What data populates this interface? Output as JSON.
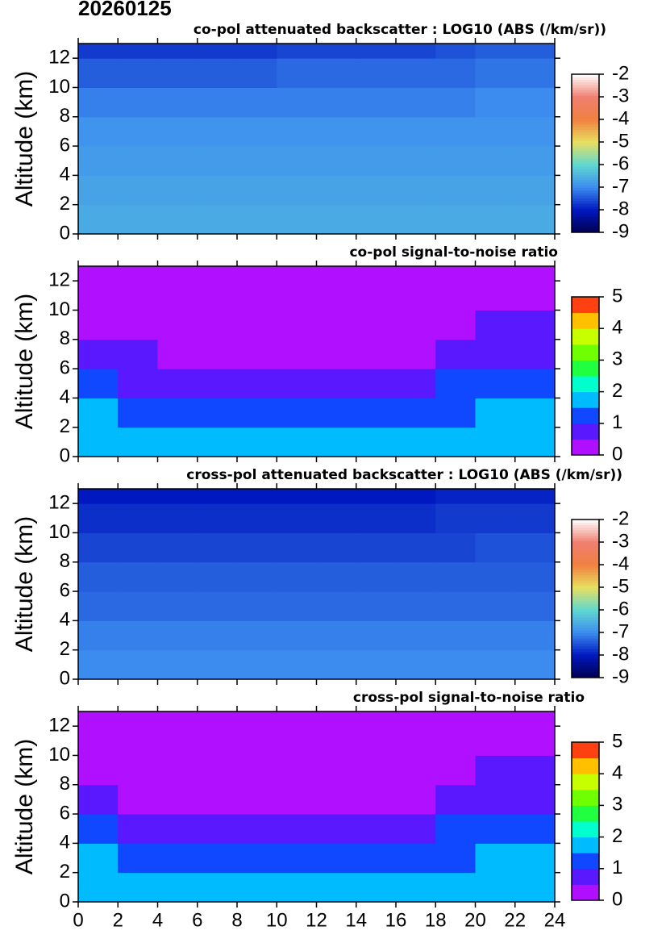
{
  "title": "20260125",
  "chart_data": [
    {
      "type": "heatmap",
      "title": "co-pol attenuated backscatter : LOG10 (ABS (/km/sr))",
      "ylabel": "Altitude (km)",
      "xbins": [
        0,
        2,
        4,
        6,
        8,
        10,
        12,
        14,
        16,
        18,
        20,
        22,
        24
      ],
      "ybins": [
        0,
        2,
        4,
        6,
        8,
        10,
        12,
        13
      ],
      "z": [
        [
          -6.6,
          -6.6,
          -6.6,
          -6.6,
          -6.6,
          -6.6,
          -6.6,
          -6.6,
          -6.6,
          -6.6,
          -6.6,
          -6.6
        ],
        [
          -6.7,
          -6.7,
          -6.7,
          -6.7,
          -6.7,
          -6.7,
          -6.7,
          -6.7,
          -6.7,
          -6.7,
          -6.7,
          -6.7
        ],
        [
          -6.8,
          -6.8,
          -6.8,
          -6.8,
          -6.8,
          -6.8,
          -6.8,
          -6.8,
          -6.8,
          -6.8,
          -6.8,
          -6.8
        ],
        [
          -6.9,
          -6.9,
          -6.9,
          -6.9,
          -6.9,
          -6.9,
          -6.9,
          -6.9,
          -6.9,
          -6.9,
          -6.9,
          -6.9
        ],
        [
          -7.1,
          -7.1,
          -7.1,
          -7.1,
          -7.1,
          -7.1,
          -7.1,
          -7.1,
          -7.1,
          -7.1,
          -7.0,
          -7.0
        ],
        [
          -7.4,
          -7.4,
          -7.4,
          -7.4,
          -7.4,
          -7.3,
          -7.3,
          -7.3,
          -7.3,
          -7.3,
          -7.2,
          -7.2
        ],
        [
          -7.7,
          -7.7,
          -7.7,
          -7.7,
          -7.7,
          -7.6,
          -7.6,
          -7.6,
          -7.6,
          -7.5,
          -7.4,
          -7.4
        ]
      ],
      "xlim": [
        0,
        24
      ],
      "ylim": [
        0,
        13
      ],
      "xticks": [
        0,
        2,
        4,
        6,
        8,
        10,
        12,
        14,
        16,
        18,
        20,
        22,
        24
      ],
      "yticks": [
        0,
        2,
        4,
        6,
        8,
        10,
        12
      ],
      "zlim": [
        -9,
        -2
      ],
      "zticks": [
        -9,
        -8,
        -7,
        -6,
        -5,
        -4,
        -3,
        -2
      ],
      "discrete": false,
      "show_xtick_labels": false,
      "colorscale": [
        "#000050",
        "#0018c0",
        "#3c8cf0",
        "#60d8d0",
        "#e8e060",
        "#f08040",
        "#f08070",
        "#ffffff"
      ]
    },
    {
      "type": "heatmap",
      "title": "co-pol signal-to-noise ratio",
      "ylabel": "Altitude (km)",
      "xbins": [
        0,
        2,
        4,
        6,
        8,
        10,
        12,
        14,
        16,
        18,
        20,
        22,
        24
      ],
      "ybins": [
        0,
        2,
        4,
        6,
        8,
        10,
        12,
        13
      ],
      "z": [
        [
          1.8,
          1.8,
          1.8,
          1.8,
          1.8,
          1.8,
          1.8,
          1.8,
          1.8,
          1.8,
          1.8,
          1.8
        ],
        [
          1.6,
          1.3,
          1.2,
          1.2,
          1.2,
          1.2,
          1.2,
          1.2,
          1.2,
          1.4,
          1.7,
          1.7
        ],
        [
          1.1,
          0.9,
          0.9,
          0.8,
          0.8,
          0.8,
          0.9,
          0.8,
          0.8,
          1.0,
          1.2,
          1.2
        ],
        [
          0.6,
          0.5,
          0.4,
          0.4,
          0.4,
          0.4,
          0.4,
          0.4,
          0.4,
          0.6,
          0.8,
          0.9
        ],
        [
          0.4,
          0.3,
          0.3,
          0.2,
          0.3,
          0.3,
          0.3,
          0.3,
          0.3,
          0.4,
          0.6,
          0.7
        ],
        [
          0.2,
          0.2,
          0.1,
          0.1,
          0.2,
          0.2,
          0.2,
          0.2,
          0.2,
          0.3,
          0.4,
          0.4
        ],
        [
          0.1,
          0.1,
          0.1,
          0.1,
          0.1,
          0.1,
          0.1,
          0.1,
          0.1,
          0.2,
          0.3,
          0.3
        ]
      ],
      "xlim": [
        0,
        24
      ],
      "ylim": [
        0,
        13
      ],
      "xticks": [
        0,
        2,
        4,
        6,
        8,
        10,
        12,
        14,
        16,
        18,
        20,
        22,
        24
      ],
      "yticks": [
        0,
        2,
        4,
        6,
        8,
        10,
        12
      ],
      "zlim": [
        0,
        5
      ],
      "zticks": [
        0,
        1,
        2,
        3,
        4,
        5
      ],
      "discrete": true,
      "show_xtick_labels": false,
      "colorscale": [
        "#b010ff",
        "#5a18ff",
        "#1048ff",
        "#00bcff",
        "#00ffcc",
        "#20ff40",
        "#70ff00",
        "#c8ff00",
        "#ffc000",
        "#ff4010"
      ]
    },
    {
      "type": "heatmap",
      "title": "cross-pol attenuated backscatter : LOG10 (ABS (/km/sr))",
      "ylabel": "Altitude (km)",
      "xbins": [
        0,
        2,
        4,
        6,
        8,
        10,
        12,
        14,
        16,
        18,
        20,
        22,
        24
      ],
      "ybins": [
        0,
        2,
        4,
        6,
        8,
        10,
        12,
        13
      ],
      "z": [
        [
          -7.0,
          -7.0,
          -7.0,
          -7.0,
          -7.0,
          -7.0,
          -7.0,
          -7.0,
          -7.0,
          -7.0,
          -7.0,
          -7.0
        ],
        [
          -7.1,
          -7.1,
          -7.1,
          -7.1,
          -7.1,
          -7.1,
          -7.1,
          -7.1,
          -7.1,
          -7.1,
          -7.1,
          -7.1
        ],
        [
          -7.3,
          -7.3,
          -7.3,
          -7.3,
          -7.3,
          -7.3,
          -7.3,
          -7.3,
          -7.3,
          -7.3,
          -7.3,
          -7.3
        ],
        [
          -7.4,
          -7.4,
          -7.4,
          -7.4,
          -7.4,
          -7.4,
          -7.4,
          -7.4,
          -7.4,
          -7.4,
          -7.4,
          -7.4
        ],
        [
          -7.6,
          -7.6,
          -7.6,
          -7.6,
          -7.6,
          -7.6,
          -7.6,
          -7.6,
          -7.6,
          -7.6,
          -7.5,
          -7.5
        ],
        [
          -7.8,
          -7.8,
          -7.8,
          -7.8,
          -7.8,
          -7.8,
          -7.8,
          -7.8,
          -7.8,
          -7.7,
          -7.7,
          -7.7
        ],
        [
          -8.0,
          -8.0,
          -8.0,
          -8.0,
          -8.0,
          -8.0,
          -8.0,
          -8.0,
          -8.0,
          -7.9,
          -7.9,
          -7.9
        ]
      ],
      "xlim": [
        0,
        24
      ],
      "ylim": [
        0,
        13
      ],
      "xticks": [
        0,
        2,
        4,
        6,
        8,
        10,
        12,
        14,
        16,
        18,
        20,
        22,
        24
      ],
      "yticks": [
        0,
        2,
        4,
        6,
        8,
        10,
        12
      ],
      "zlim": [
        -9,
        -2
      ],
      "zticks": [
        -9,
        -8,
        -7,
        -6,
        -5,
        -4,
        -3,
        -2
      ],
      "discrete": false,
      "show_xtick_labels": false,
      "colorscale": [
        "#000050",
        "#0018c0",
        "#3c8cf0",
        "#60d8d0",
        "#e8e060",
        "#f08040",
        "#f08070",
        "#ffffff"
      ]
    },
    {
      "type": "heatmap",
      "title": "cross-pol signal-to-noise ratio",
      "ylabel": "Altitude (km)",
      "xbins": [
        0,
        2,
        4,
        6,
        8,
        10,
        12,
        14,
        16,
        18,
        20,
        22,
        24
      ],
      "ybins": [
        0,
        2,
        4,
        6,
        8,
        10,
        12,
        13
      ],
      "z": [
        [
          1.8,
          1.8,
          1.8,
          1.8,
          1.8,
          1.8,
          1.8,
          1.8,
          1.8,
          1.8,
          1.8,
          1.8
        ],
        [
          1.6,
          1.3,
          1.2,
          1.2,
          1.2,
          1.2,
          1.2,
          1.2,
          1.2,
          1.4,
          1.7,
          1.7
        ],
        [
          1.1,
          0.9,
          0.8,
          0.8,
          0.8,
          0.8,
          0.8,
          0.8,
          0.8,
          1.0,
          1.2,
          1.2
        ],
        [
          0.6,
          0.4,
          0.4,
          0.4,
          0.4,
          0.4,
          0.4,
          0.4,
          0.4,
          0.6,
          0.8,
          0.9
        ],
        [
          0.3,
          0.3,
          0.2,
          0.2,
          0.2,
          0.3,
          0.3,
          0.3,
          0.3,
          0.4,
          0.6,
          0.7
        ],
        [
          0.2,
          0.1,
          0.1,
          0.1,
          0.1,
          0.2,
          0.2,
          0.2,
          0.2,
          0.3,
          0.4,
          0.4
        ],
        [
          0.1,
          0.1,
          0.1,
          0.1,
          0.1,
          0.1,
          0.1,
          0.1,
          0.1,
          0.2,
          0.3,
          0.3
        ]
      ],
      "xlim": [
        0,
        24
      ],
      "ylim": [
        0,
        13
      ],
      "xticks": [
        0,
        2,
        4,
        6,
        8,
        10,
        12,
        14,
        16,
        18,
        20,
        22,
        24
      ],
      "yticks": [
        0,
        2,
        4,
        6,
        8,
        10,
        12
      ],
      "zlim": [
        0,
        5
      ],
      "zticks": [
        0,
        1,
        2,
        3,
        4,
        5
      ],
      "discrete": true,
      "show_xtick_labels": true,
      "colorscale": [
        "#b010ff",
        "#5a18ff",
        "#1048ff",
        "#00bcff",
        "#00ffcc",
        "#20ff40",
        "#70ff00",
        "#c8ff00",
        "#ffc000",
        "#ff4010"
      ]
    }
  ]
}
